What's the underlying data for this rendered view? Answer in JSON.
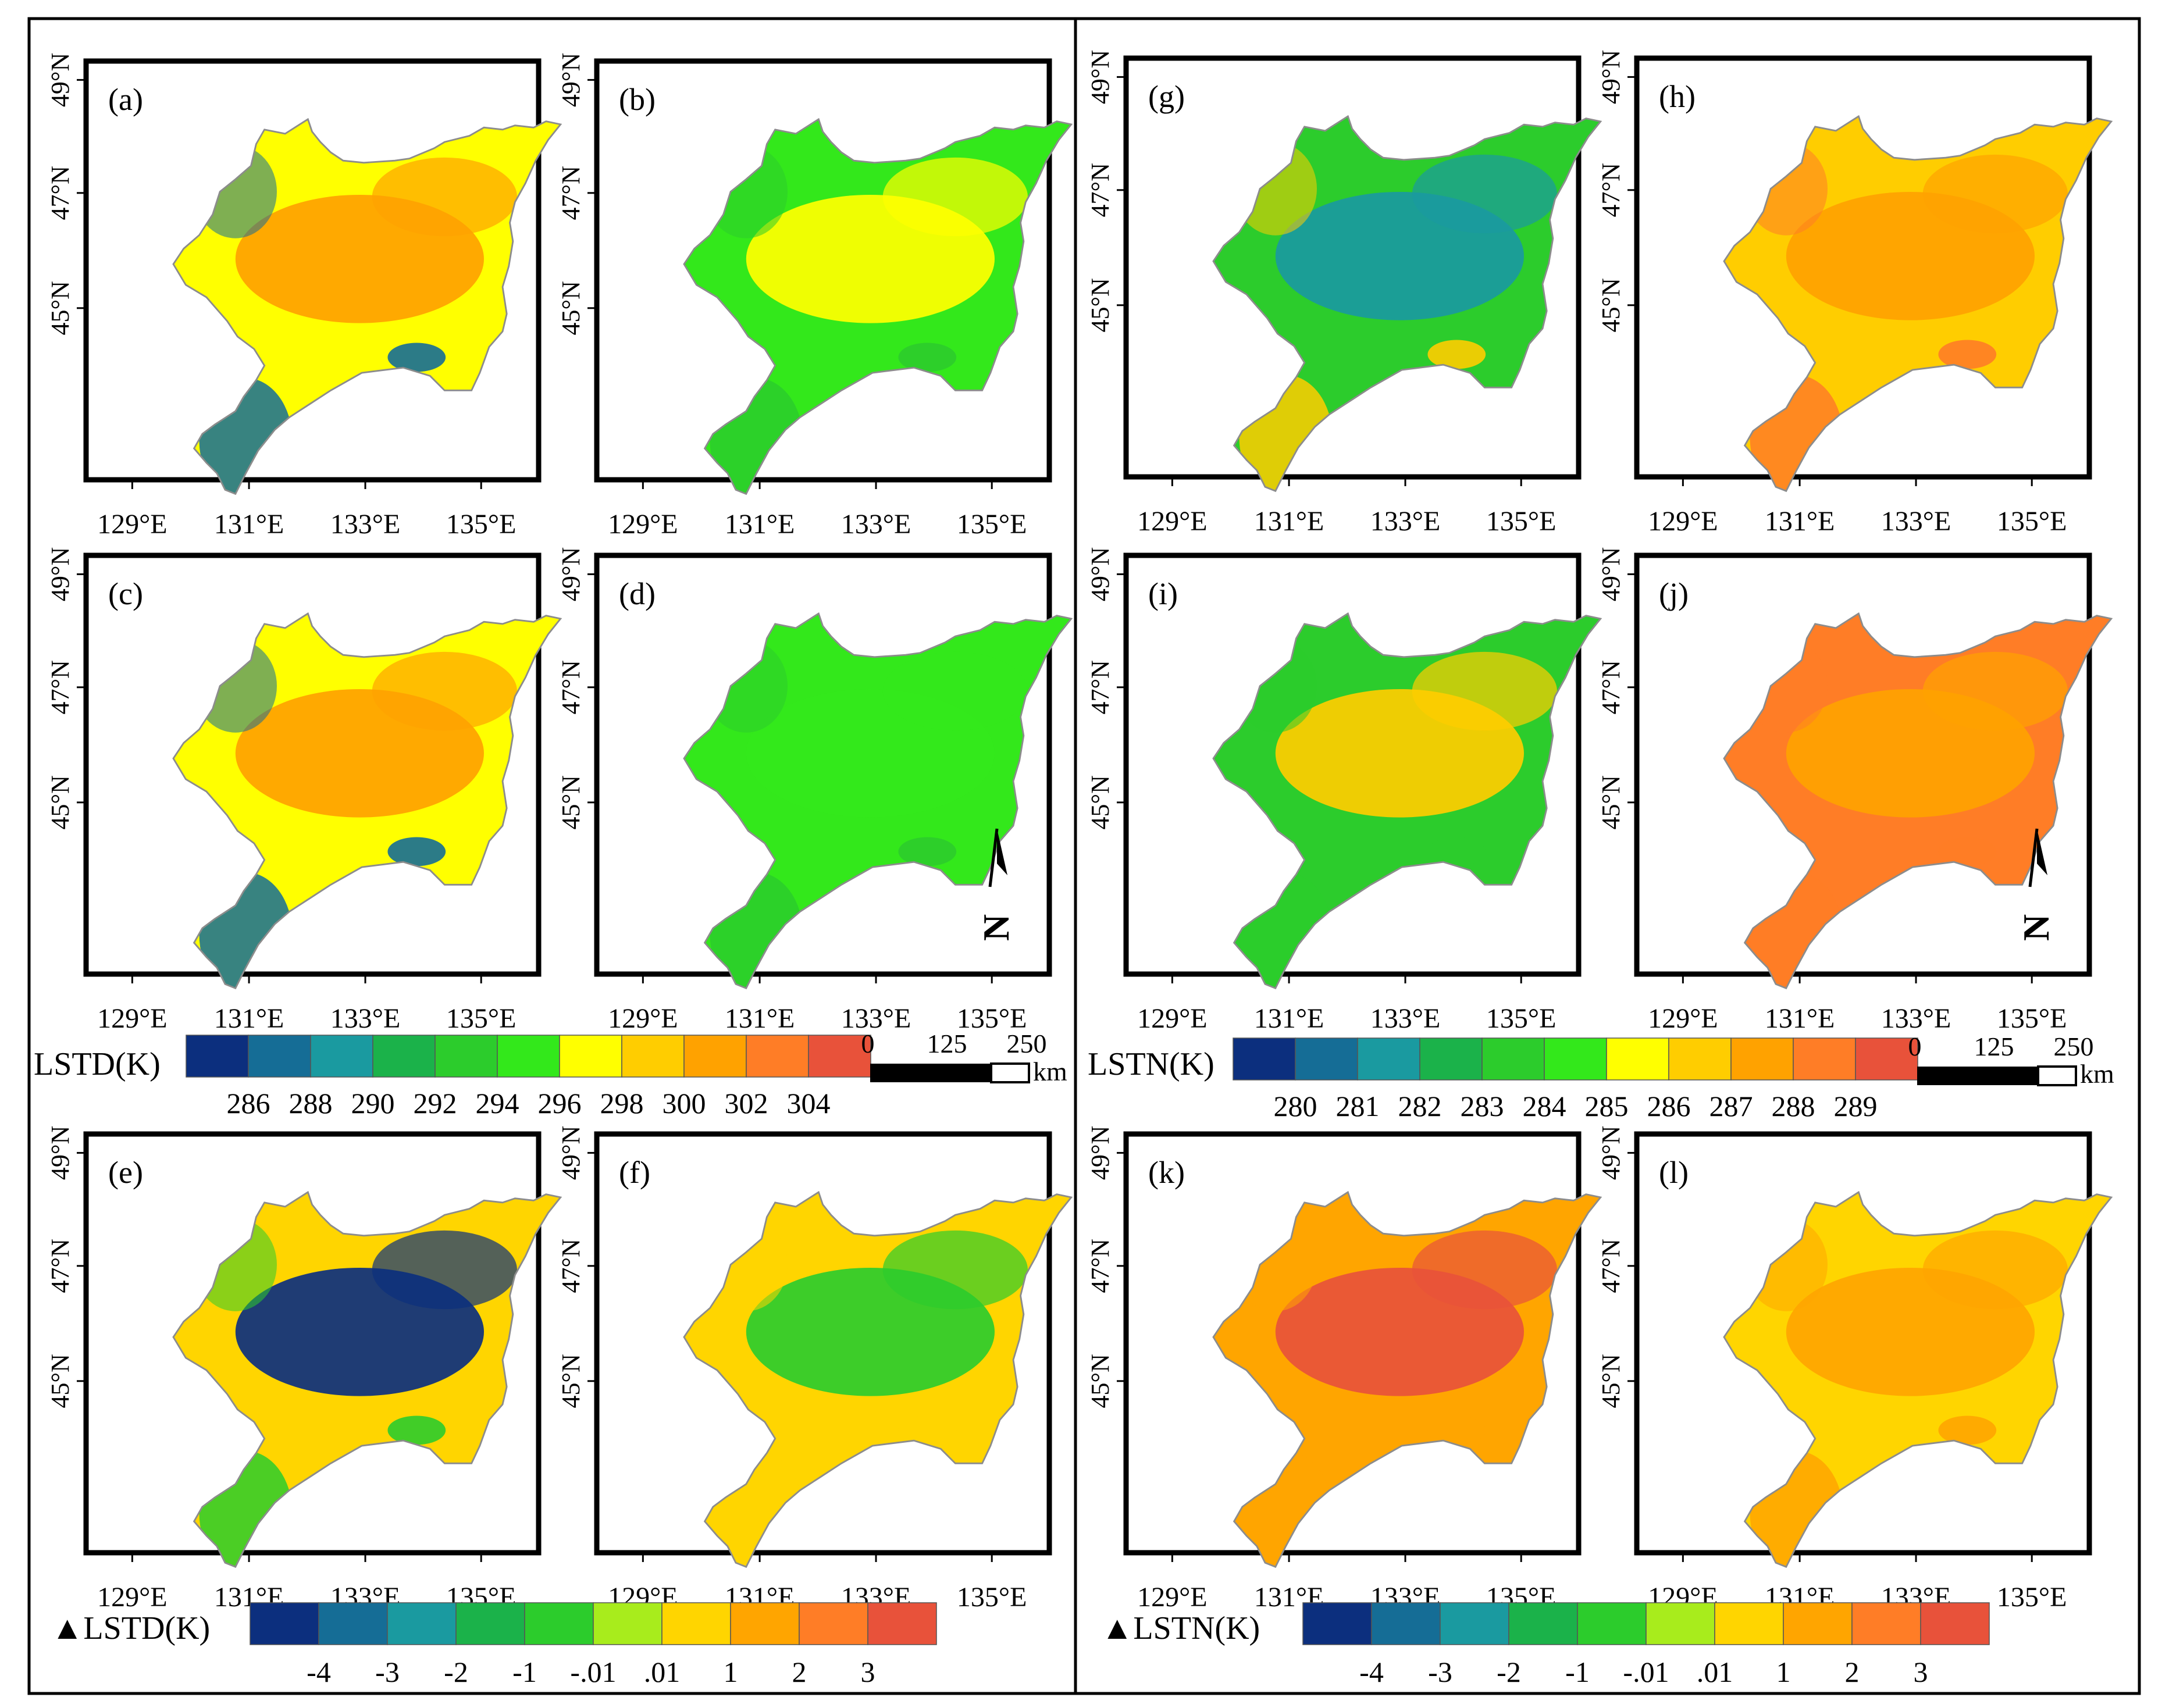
{
  "figure": {
    "lon_labels": [
      "129°E",
      "131°E",
      "133°E",
      "135°E"
    ],
    "lat_labels": [
      "49°N",
      "47°N",
      "45°N"
    ],
    "north_arrow_label": "N",
    "boundary_color": "#8c8c8c"
  },
  "panels": [
    {
      "label": "(a)",
      "variable": "LSTD",
      "scale": "lstd",
      "field": {
        "base": 6,
        "core": 8,
        "south": 1
      }
    },
    {
      "label": "(b)",
      "variable": "LSTD",
      "scale": "lstd",
      "field": {
        "base": 5,
        "core": 6,
        "south": 4
      }
    },
    {
      "label": "(c)",
      "variable": "LSTD",
      "scale": "lstd",
      "field": {
        "base": 6,
        "core": 8,
        "south": 1
      }
    },
    {
      "label": "(d)",
      "variable": "LSTD",
      "scale": "lstd",
      "field": {
        "base": 5,
        "core": 5,
        "south": 4
      },
      "north_arrow": true
    },
    {
      "label": "(e)",
      "variable": "ΔLSTD",
      "scale": "delta",
      "field": {
        "base": 6,
        "core": 0,
        "south": 4
      }
    },
    {
      "label": "(f)",
      "variable": "ΔLSTD",
      "scale": "delta",
      "field": {
        "base": 6,
        "core": 4,
        "south": 6
      }
    },
    {
      "label": "(g)",
      "variable": "LSTN",
      "scale": "lstn",
      "field": {
        "base": 4,
        "core": 2,
        "south": 7
      }
    },
    {
      "label": "(h)",
      "variable": "LSTN",
      "scale": "lstn",
      "field": {
        "base": 7,
        "core": 8,
        "south": 9
      }
    },
    {
      "label": "(i)",
      "variable": "LSTN",
      "scale": "lstn",
      "field": {
        "base": 4,
        "core": 7,
        "south": 4
      }
    },
    {
      "label": "(j)",
      "variable": "LSTN",
      "scale": "lstn",
      "field": {
        "base": 9,
        "core": 8,
        "south": 9
      },
      "north_arrow": true
    },
    {
      "label": "(k)",
      "variable": "ΔLSTN",
      "scale": "delta",
      "field": {
        "base": 7,
        "core": 9,
        "south": 7
      }
    },
    {
      "label": "(l)",
      "variable": "ΔLSTN",
      "scale": "delta",
      "field": {
        "base": 6,
        "core": 7,
        "south": 7
      }
    }
  ],
  "legends": {
    "lstd": {
      "title": "LSTD(K)",
      "ticks": [
        "286",
        "288",
        "290",
        "292",
        "294",
        "296",
        "298",
        "300",
        "302",
        "304"
      ],
      "colors": [
        "#0c2f7e",
        "#156d96",
        "#1a9aa0",
        "#1bb24a",
        "#2ccc2c",
        "#33e81b",
        "#ffff00",
        "#ffcd00",
        "#ffa200",
        "#ff7d26",
        "#e8523a"
      ]
    },
    "lstn": {
      "title": "LSTN(K)",
      "ticks": [
        "280",
        "281",
        "282",
        "283",
        "284",
        "285",
        "286",
        "287",
        "288",
        "289"
      ],
      "colors": [
        "#0c2f7e",
        "#156d96",
        "#1a9aa0",
        "#1bb24a",
        "#2ccc2c",
        "#33e81b",
        "#ffff00",
        "#ffcd00",
        "#ffa200",
        "#ff7d26",
        "#e8523a"
      ]
    },
    "dlstd": {
      "title": "▲LSTD(K)",
      "ticks": [
        "-4",
        "-3",
        "-2",
        "-1",
        "-.01",
        ".01",
        "1",
        "2",
        "3"
      ],
      "colors": [
        "#0c2f7e",
        "#156d96",
        "#1a9aa0",
        "#1bb24a",
        "#2ccc2c",
        "#a8ec1c",
        "#ffd500",
        "#ffa500",
        "#ff7d26",
        "#e8523a"
      ]
    },
    "dlstn": {
      "title": "▲LSTN(K)",
      "ticks": [
        "-4",
        "-3",
        "-2",
        "-1",
        "-.01",
        ".01",
        "1",
        "2",
        "3"
      ],
      "colors": [
        "#0c2f7e",
        "#156d96",
        "#1a9aa0",
        "#1bb24a",
        "#2ccc2c",
        "#a8ec1c",
        "#ffd500",
        "#ffa500",
        "#ff7d26",
        "#e8523a"
      ]
    }
  },
  "scalebars": [
    {
      "ticks": [
        "0",
        "125",
        "250"
      ],
      "unit": "km"
    },
    {
      "ticks": [
        "0",
        "125",
        "250"
      ],
      "unit": "km"
    }
  ]
}
